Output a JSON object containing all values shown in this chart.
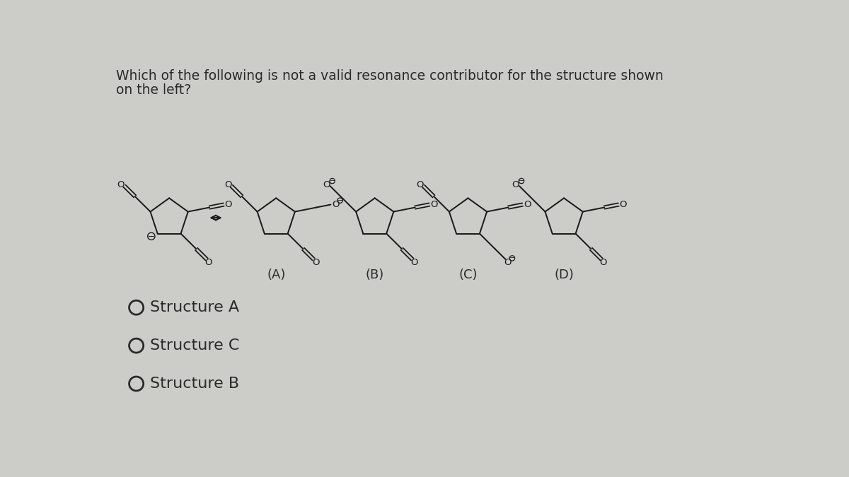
{
  "title_line1": "Which of the following is not a valid resonance contributor for the structure shown",
  "title_line2": "on the left?",
  "bg_color": "#ccccc8",
  "text_color": "#2a2a2a",
  "mol_color": "#1a1a1a",
  "labels": [
    "(A)",
    "(B)",
    "(C)",
    "(D)"
  ],
  "answer_choices": [
    "Structure A",
    "Structure C",
    "Structure B"
  ],
  "title_fontsize": 13.5,
  "answer_fontsize": 16,
  "label_fontsize": 13
}
